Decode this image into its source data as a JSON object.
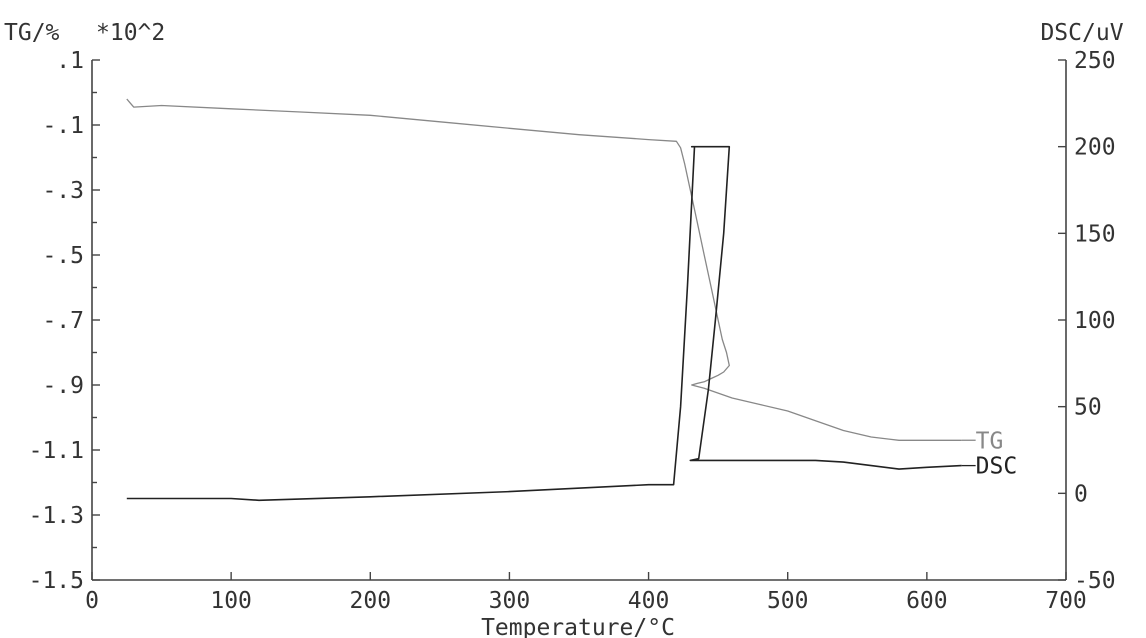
{
  "chart_data": {
    "type": "line",
    "xlabel": "Temperature/°C",
    "xlim": [
      0,
      700
    ],
    "x_ticks": [
      "0",
      "100",
      "200",
      "300",
      "400",
      "500",
      "600",
      "700"
    ],
    "x_tick_values": [
      0,
      100,
      200,
      300,
      400,
      500,
      600,
      700
    ],
    "y_left": {
      "label": "TG/%",
      "multiplier": "*10^2",
      "ylim": [
        -1.5,
        0.1
      ],
      "ticks": [
        ".1",
        "-.1",
        "-.3",
        "-.5",
        "-.7",
        "-.9",
        "-1.1",
        "-1.3",
        "-1.5"
      ],
      "tick_values": [
        0.1,
        -0.1,
        -0.3,
        -0.5,
        -0.7,
        -0.9,
        -1.1,
        -1.3,
        -1.5
      ]
    },
    "y_right": {
      "label": "DSC/uV",
      "ylim": [
        -50,
        250
      ],
      "ticks": [
        "250",
        "200",
        "150",
        "100",
        "50",
        "0",
        "-50"
      ],
      "tick_values": [
        250,
        200,
        150,
        100,
        50,
        0,
        -50
      ]
    },
    "series": [
      {
        "name": "TG",
        "axis": "left",
        "color": "#888888",
        "x": [
          25,
          27,
          30,
          50,
          100,
          150,
          200,
          250,
          300,
          350,
          400,
          420,
          423,
          426,
          430,
          435,
          440,
          445,
          450,
          453,
          456,
          458,
          454,
          450,
          445,
          440,
          435,
          431,
          440,
          460,
          480,
          500,
          520,
          540,
          560,
          580,
          600,
          625
        ],
        "y": [
          -0.02,
          -0.03,
          -0.045,
          -0.04,
          -0.05,
          -0.06,
          -0.07,
          -0.09,
          -0.11,
          -0.13,
          -0.145,
          -0.15,
          -0.17,
          -0.22,
          -0.3,
          -0.4,
          -0.5,
          -0.6,
          -0.7,
          -0.76,
          -0.8,
          -0.84,
          -0.86,
          -0.87,
          -0.88,
          -0.89,
          -0.895,
          -0.9,
          -0.91,
          -0.94,
          -0.96,
          -0.98,
          -1.01,
          -1.04,
          -1.06,
          -1.07,
          -1.07,
          -1.07
        ]
      },
      {
        "name": "DSC",
        "axis": "right",
        "color": "#222222",
        "x": [
          25,
          100,
          120,
          200,
          300,
          400,
          418,
          423,
          428,
          433,
          431,
          436,
          458,
          454,
          448,
          443,
          436,
          430,
          440,
          460,
          480,
          500,
          520,
          540,
          560,
          580,
          600,
          625
        ],
        "y": [
          -3,
          -3,
          -4,
          -2,
          1,
          5,
          5,
          50,
          120,
          200,
          200,
          200,
          200,
          150,
          100,
          60,
          20,
          19,
          19,
          19,
          19,
          19,
          19,
          18,
          16,
          14,
          15,
          16
        ]
      }
    ],
    "legend_labels": [
      "TG",
      "DSC"
    ]
  }
}
